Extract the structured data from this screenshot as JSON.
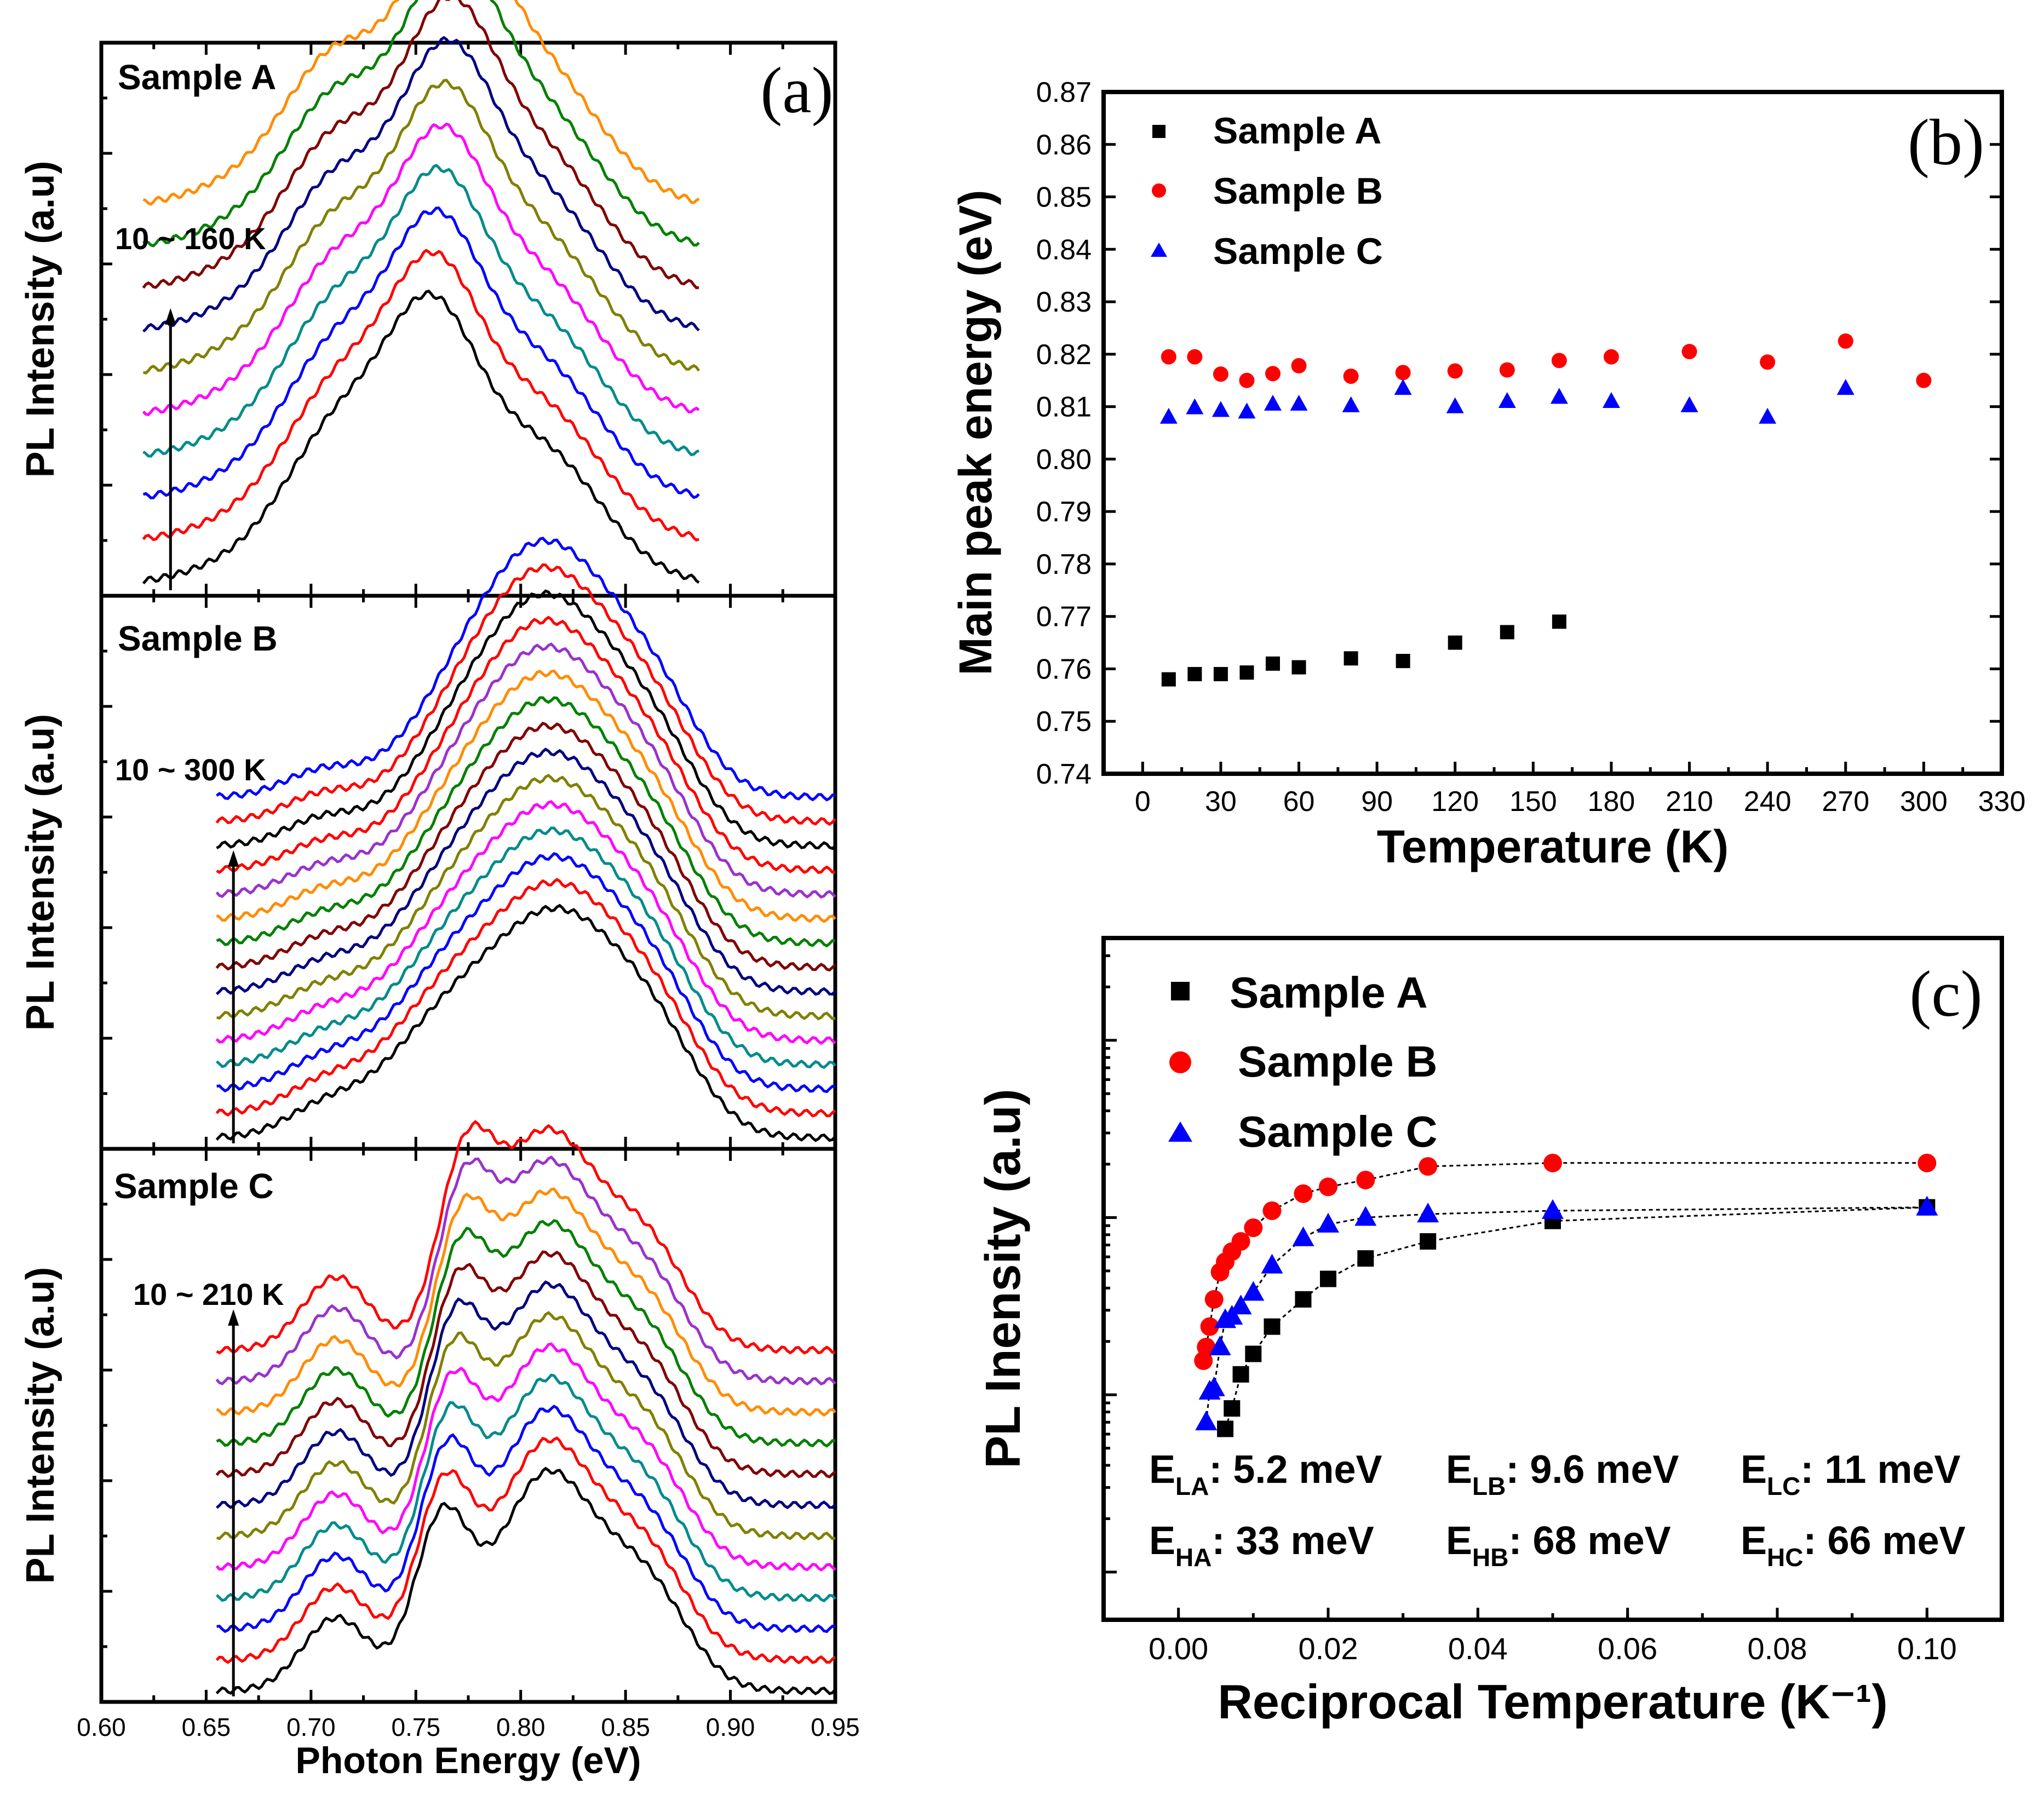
{
  "chart_data": [
    {
      "id": "a",
      "type": "line",
      "panel_label": "(a)",
      "xlabel": "Photon Energy (eV)",
      "ylabel": "PL Intensity (a.u)",
      "xlim": [
        0.6,
        0.95
      ],
      "xticks": [
        "0.60",
        "0.65",
        "0.70",
        "0.75",
        "0.80",
        "0.85",
        "0.90",
        "0.95"
      ],
      "colors": [
        "#000000",
        "#ff0000",
        "#0000ff",
        "#008b8b",
        "#ff00ff",
        "#808000",
        "#000080",
        "#800000",
        "#008000",
        "#ff8c00",
        "#9932cc",
        "#ff0000"
      ],
      "subplots": [
        {
          "name": "Sample A",
          "range_label": "10 ~ 160 K",
          "x_range": [
            0.62,
            0.885
          ],
          "n_curves": 10,
          "offset_step": 0.095,
          "peaks": [
            {
              "center": 0.714,
              "width": 0.024,
              "amp": 0.55
            },
            {
              "center": 0.757,
              "width": 0.022,
              "amp": 0.95
            },
            {
              "center": 0.808,
              "width": 0.03,
              "amp": 0.55
            },
            {
              "center": 0.68,
              "width": 0.03,
              "amp": 0.12
            }
          ]
        },
        {
          "name": "Sample B",
          "range_label": "10 ~ 300 K",
          "x_range": [
            0.655,
            0.95
          ],
          "n_curves": 15,
          "offset_step": 0.055,
          "peaks": [
            {
              "center": 0.705,
              "width": 0.018,
              "amp": 0.1
            },
            {
              "center": 0.765,
              "width": 0.03,
              "amp": 0.45
            },
            {
              "center": 0.82,
              "width": 0.03,
              "amp": 0.82
            },
            {
              "center": 0.865,
              "width": 0.022,
              "amp": 0.3
            }
          ]
        },
        {
          "name": "Sample C",
          "range_label": "10 ~ 210 K",
          "x_range": [
            0.655,
            0.95
          ],
          "n_curves": 12,
          "offset_step": 0.07,
          "peaks": [
            {
              "center": 0.712,
              "width": 0.016,
              "amp": 0.3
            },
            {
              "center": 0.762,
              "width": 0.013,
              "amp": 0.65
            },
            {
              "center": 0.812,
              "width": 0.024,
              "amp": 0.88
            },
            {
              "center": 0.86,
              "width": 0.02,
              "amp": 0.4
            }
          ]
        }
      ]
    },
    {
      "id": "b",
      "type": "scatter",
      "panel_label": "(b)",
      "xlabel": "Temperature (K)",
      "ylabel": "Main peak energy (eV)",
      "xlim": [
        -15,
        330
      ],
      "ylim": [
        0.74,
        0.87
      ],
      "xticks": [
        0,
        30,
        60,
        90,
        120,
        150,
        180,
        210,
        240,
        270,
        300,
        330
      ],
      "yticks": [
        "0.74",
        "0.75",
        "0.76",
        "0.77",
        "0.78",
        "0.79",
        "0.80",
        "0.81",
        "0.82",
        "0.83",
        "0.84",
        "0.85",
        "0.86",
        "0.87"
      ],
      "series": [
        {
          "name": "Sample A",
          "marker": "square",
          "color": "#000000",
          "x": [
            10,
            20,
            30,
            40,
            50,
            60,
            80,
            100,
            120,
            140,
            160
          ],
          "y": [
            0.758,
            0.759,
            0.759,
            0.7593,
            0.761,
            0.7603,
            0.762,
            0.7615,
            0.765,
            0.767,
            0.769
          ]
        },
        {
          "name": "Sample B",
          "marker": "circle",
          "color": "#ff0000",
          "x": [
            10,
            20,
            30,
            40,
            50,
            60,
            80,
            100,
            120,
            140,
            160,
            180,
            210,
            240,
            270,
            300
          ],
          "y": [
            0.8195,
            0.8195,
            0.8162,
            0.815,
            0.8163,
            0.8178,
            0.8158,
            0.8165,
            0.8168,
            0.817,
            0.8188,
            0.8195,
            0.8205,
            0.8185,
            0.8225,
            0.815
          ]
        },
        {
          "name": "Sample C",
          "marker": "triangle",
          "color": "#0000ff",
          "x": [
            10,
            20,
            30,
            40,
            50,
            60,
            80,
            100,
            120,
            140,
            160,
            180,
            210,
            240,
            270
          ],
          "y": [
            0.808,
            0.8098,
            0.8093,
            0.809,
            0.8105,
            0.8105,
            0.8102,
            0.8135,
            0.81,
            0.811,
            0.8118,
            0.811,
            0.8102,
            0.808,
            0.8135
          ]
        }
      ]
    },
    {
      "id": "c",
      "type": "scatter",
      "panel_label": "(c)",
      "xlabel": "Reciprocal Temperature (K⁻¹)",
      "ylabel": "PL Inensity (a.u)",
      "xlim": [
        -0.01,
        0.11
      ],
      "ylim": [
        0,
        1
      ],
      "xticks": [
        "0.00",
        "0.02",
        "0.04",
        "0.06",
        "0.08",
        "0.10"
      ],
      "series": [
        {
          "name": "Sample A",
          "marker": "square",
          "color": "#000000",
          "x": [
            0.00625,
            0.007143,
            0.008333,
            0.01,
            0.0125,
            0.016667,
            0.02,
            0.025,
            0.033333,
            0.05,
            0.1
          ],
          "y": [
            0.28,
            0.31,
            0.36,
            0.39,
            0.43,
            0.47,
            0.5,
            0.53,
            0.555,
            0.585,
            0.605
          ]
        },
        {
          "name": "Sample B",
          "marker": "circle",
          "color": "#ff0000",
          "x": [
            0.003333,
            0.003704,
            0.004167,
            0.004762,
            0.005556,
            0.00625,
            0.007143,
            0.008333,
            0.01,
            0.0125,
            0.016667,
            0.02,
            0.025,
            0.033333,
            0.05,
            0.1
          ],
          "y": [
            0.38,
            0.4,
            0.43,
            0.47,
            0.51,
            0.525,
            0.54,
            0.555,
            0.575,
            0.6,
            0.625,
            0.635,
            0.645,
            0.665,
            0.67,
            0.67
          ]
        },
        {
          "name": "Sample C",
          "marker": "triangle",
          "color": "#0000ff",
          "x": [
            0.003704,
            0.004167,
            0.004762,
            0.005556,
            0.00625,
            0.007143,
            0.008333,
            0.01,
            0.0125,
            0.016667,
            0.02,
            0.025,
            0.033333,
            0.05,
            0.1
          ],
          "y": [
            0.29,
            0.335,
            0.34,
            0.4,
            0.44,
            0.445,
            0.46,
            0.48,
            0.52,
            0.56,
            0.58,
            0.59,
            0.595,
            0.6,
            0.605
          ]
        }
      ],
      "annotations": [
        {
          "sym": "E",
          "sub": "LA",
          "value": ": 5.2 meV"
        },
        {
          "sym": "E",
          "sub": "LB",
          "value": ": 9.6 meV"
        },
        {
          "sym": "E",
          "sub": "LC",
          "value": ": 11 meV"
        },
        {
          "sym": "E",
          "sub": "HA",
          "value": ": 33 meV"
        },
        {
          "sym": "E",
          "sub": "HB",
          "value": ": 68 meV"
        },
        {
          "sym": "E",
          "sub": "HC",
          "value": ": 66 meV"
        }
      ]
    }
  ]
}
